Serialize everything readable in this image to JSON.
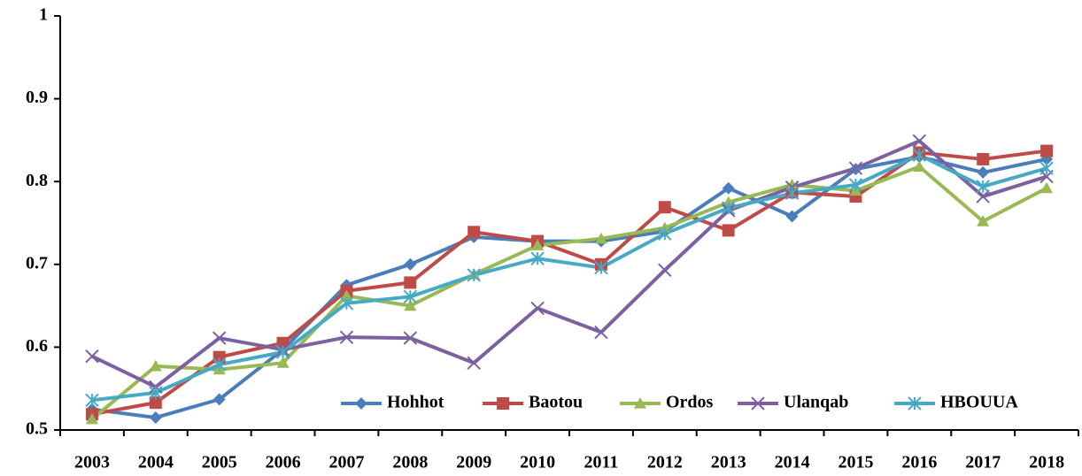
{
  "chart_data": {
    "type": "line",
    "categories": [
      "2003",
      "2004",
      "2005",
      "2006",
      "2007",
      "2008",
      "2009",
      "2010",
      "2011",
      "2012",
      "2013",
      "2014",
      "2015",
      "2016",
      "2017",
      "2018"
    ],
    "series": [
      {
        "name": "Hohhot",
        "color": "#4a7ebb",
        "marker": "diamond",
        "values": [
          0.525,
          0.515,
          0.537,
          0.597,
          0.675,
          0.7,
          0.733,
          0.728,
          0.728,
          0.74,
          0.792,
          0.758,
          0.815,
          0.83,
          0.811,
          0.827
        ]
      },
      {
        "name": "Baotou",
        "color": "#be4b48",
        "marker": "square",
        "values": [
          0.519,
          0.533,
          0.588,
          0.605,
          0.668,
          0.678,
          0.739,
          0.728,
          0.7,
          0.769,
          0.741,
          0.787,
          0.782,
          0.835,
          0.827,
          0.837
        ]
      },
      {
        "name": "Ordos",
        "color": "#98b954",
        "marker": "triangle",
        "values": [
          0.513,
          0.577,
          0.573,
          0.581,
          0.662,
          0.65,
          0.688,
          0.723,
          0.731,
          0.744,
          0.775,
          0.796,
          0.789,
          0.818,
          0.752,
          0.792
        ]
      },
      {
        "name": "Ulanqab",
        "color": "#7d60a0",
        "marker": "x",
        "values": [
          0.589,
          0.552,
          0.611,
          0.597,
          0.612,
          0.611,
          0.581,
          0.647,
          0.618,
          0.693,
          0.765,
          0.793,
          0.816,
          0.849,
          0.782,
          0.806
        ]
      },
      {
        "name": "HBOUUA",
        "color": "#46aac5",
        "marker": "star",
        "values": [
          0.536,
          0.545,
          0.579,
          0.594,
          0.653,
          0.661,
          0.687,
          0.707,
          0.696,
          0.737,
          0.768,
          0.786,
          0.796,
          0.832,
          0.794,
          0.816
        ]
      }
    ],
    "ylim": [
      0.5,
      1
    ],
    "yticks": [
      0.5,
      0.6,
      0.7,
      0.8,
      0.9,
      1
    ],
    "grid": false,
    "legend": "bottom-right"
  }
}
